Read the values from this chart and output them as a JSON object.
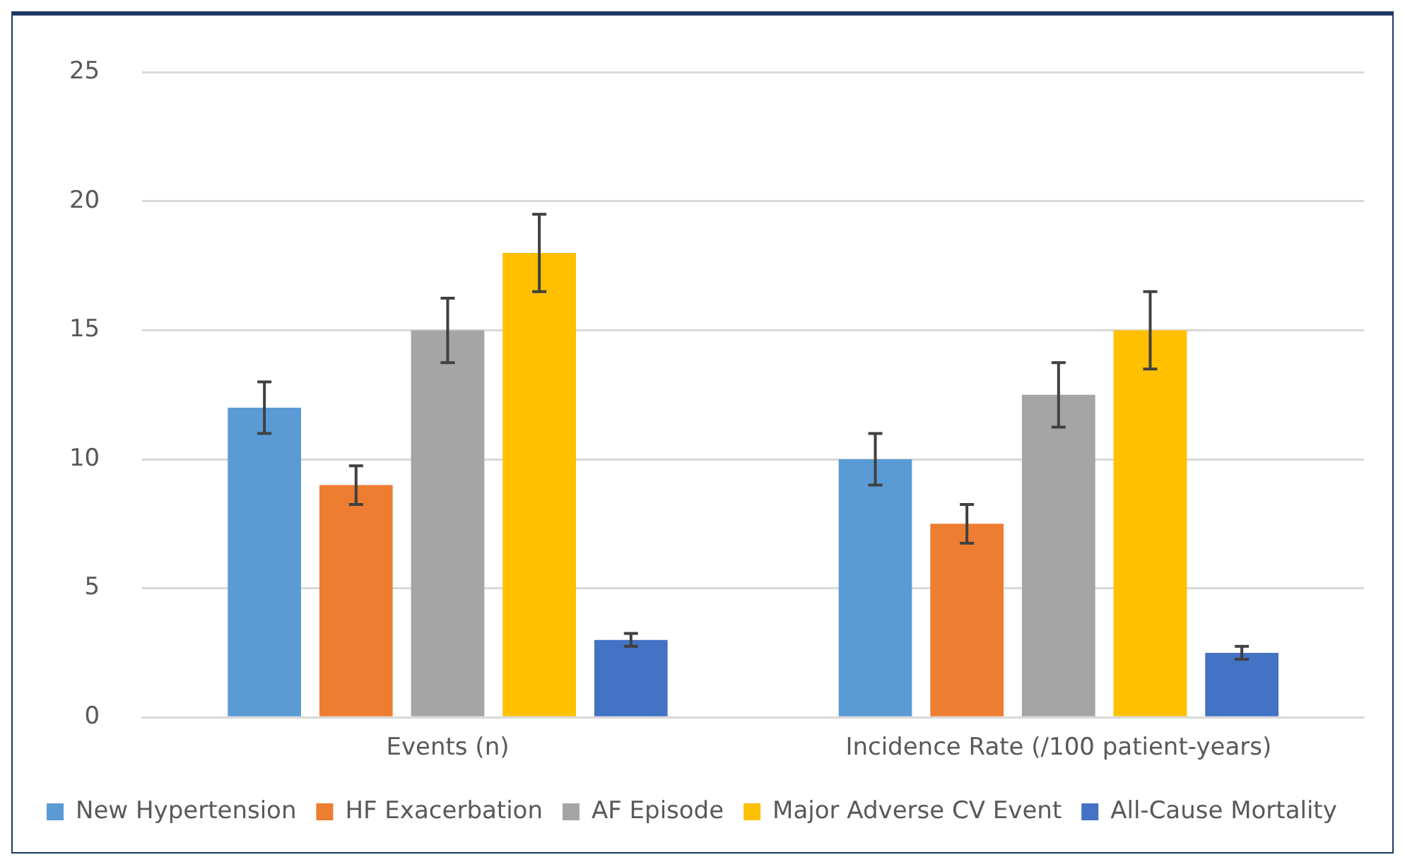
{
  "chart_data": {
    "type": "bar",
    "categories": [
      "Events (n)",
      "Incidence Rate (/100 patient-years)"
    ],
    "series": [
      {
        "name": "New Hypertension",
        "color": "#5b9bd5",
        "values": [
          12,
          10
        ],
        "errors": [
          1,
          1
        ]
      },
      {
        "name": "HF Exacerbation",
        "color": "#ed7d31",
        "values": [
          9,
          7.5
        ],
        "errors": [
          0.75,
          0.75
        ]
      },
      {
        "name": "AF Episode",
        "color": "#a5a5a5",
        "values": [
          15,
          12.5
        ],
        "errors": [
          1.25,
          1.25
        ]
      },
      {
        "name": "Major Adverse CV Event",
        "color": "#ffc000",
        "values": [
          18,
          15
        ],
        "errors": [
          1.5,
          1.5
        ]
      },
      {
        "name": "All-Cause Mortality",
        "color": "#4472c4",
        "values": [
          3,
          2.5
        ],
        "errors": [
          0.25,
          0.25
        ]
      }
    ],
    "ylim": [
      0,
      25
    ],
    "yticks": [
      0,
      5,
      10,
      15,
      20,
      25
    ],
    "grid": "y",
    "legend": "bottom"
  }
}
